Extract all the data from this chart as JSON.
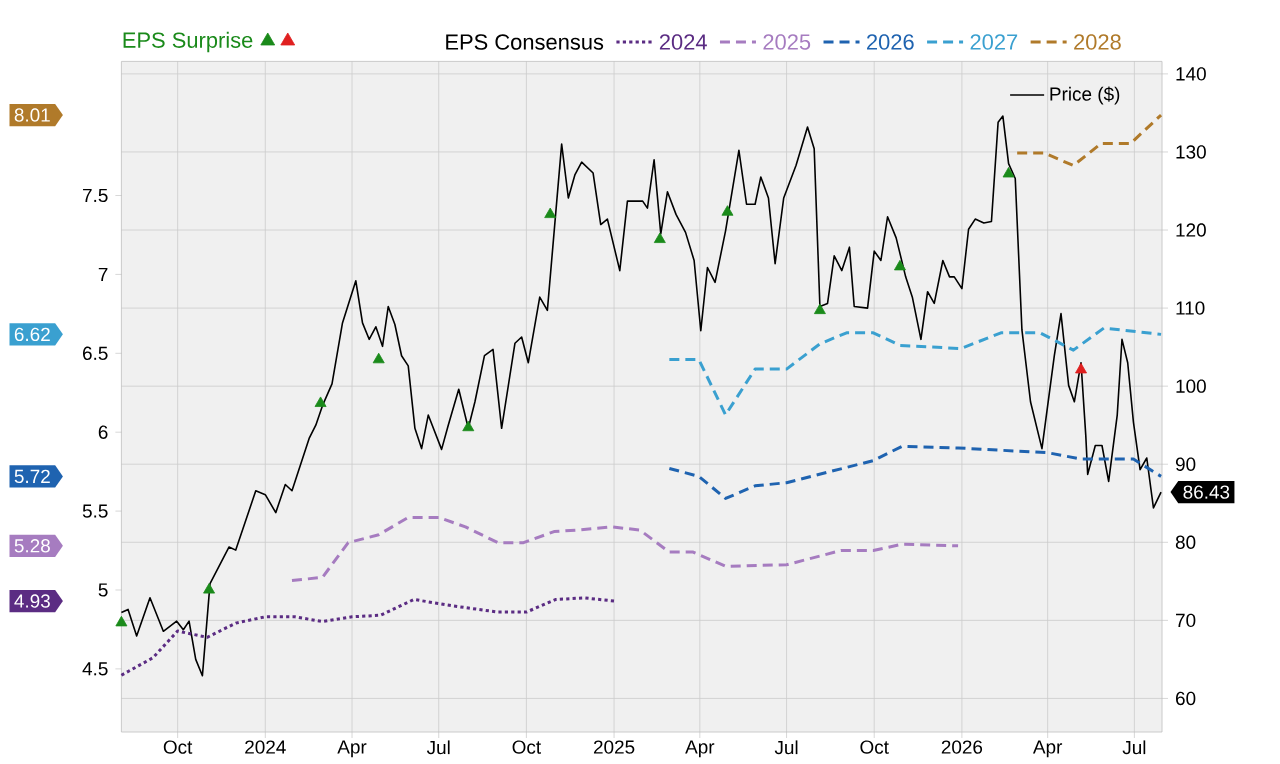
{
  "chart_data": {
    "type": "line",
    "legend": "top",
    "legend_title": "EPS Consensus",
    "grid": true,
    "annotations": [
      "4.93",
      "5.28",
      "5.72",
      "6.62",
      "8.01"
    ],
    "xlim": [
      "2023-08-03",
      "2026-07-30"
    ],
    "xticks": [
      {
        "value": "2023-10-01",
        "label": "Oct"
      },
      {
        "value": "2024-01-01",
        "label": "2024"
      },
      {
        "value": "2024-04-01",
        "label": "Apr"
      },
      {
        "value": "2024-07-01",
        "label": "Jul"
      },
      {
        "value": "2024-10-01",
        "label": "Oct"
      },
      {
        "value": "2025-01-01",
        "label": "2025"
      },
      {
        "value": "2025-04-01",
        "label": "Apr"
      },
      {
        "value": "2025-07-01",
        "label": "Jul"
      },
      {
        "value": "2025-10-01",
        "label": "Oct"
      },
      {
        "value": "2026-01-01",
        "label": "2026"
      },
      {
        "value": "2026-04-01",
        "label": "Apr"
      },
      {
        "value": "2026-07-01",
        "label": "Jul"
      }
    ],
    "ylim": [
      4.1,
      8.35
    ],
    "yticks": [
      4.5,
      5,
      5.5,
      6,
      6.5,
      7,
      7.5
    ],
    "y2lim": [
      55.7,
      141.6
    ],
    "y2ticks": [
      60,
      70,
      80,
      90,
      100,
      110,
      120,
      130,
      140
    ],
    "series": [
      {
        "name": "2024",
        "color": "#5b2c83",
        "line_style": "dotted",
        "x": [
          "2023-08-03",
          "2023-09-05",
          "2023-10-01",
          "2023-11-01",
          "2023-12-01",
          "2024-01-01",
          "2024-02-01",
          "2024-03-01",
          "2024-04-01",
          "2024-05-01",
          "2024-06-05",
          "2024-07-15",
          "2024-09-01",
          "2024-10-01",
          "2024-11-01",
          "2024-12-01",
          "2025-01-01"
        ],
        "values": [
          4.46,
          4.57,
          4.74,
          4.7,
          4.79,
          4.83,
          4.83,
          4.8,
          4.83,
          4.84,
          4.94,
          4.9,
          4.86,
          4.86,
          4.94,
          4.95,
          4.93
        ]
      },
      {
        "name": "2025",
        "color": "#a67cc0",
        "line_style": "dashed",
        "x": [
          "2024-01-29",
          "2024-03-01",
          "2024-03-28",
          "2024-04-29",
          "2024-05-30",
          "2024-07-01",
          "2024-07-29",
          "2024-09-01",
          "2024-09-28",
          "2024-10-30",
          "2024-11-24",
          "2024-12-29",
          "2025-01-28",
          "2025-02-28",
          "2025-03-25",
          "2025-04-28",
          "2025-07-01",
          "2025-08-27",
          "2025-09-30",
          "2025-10-30",
          "2025-12-28"
        ],
        "values": [
          5.06,
          5.08,
          5.3,
          5.35,
          5.46,
          5.46,
          5.4,
          5.3,
          5.3,
          5.37,
          5.38,
          5.4,
          5.38,
          5.24,
          5.24,
          5.15,
          5.16,
          5.25,
          5.25,
          5.29,
          5.28
        ]
      },
      {
        "name": "2026",
        "color": "#1f63b0",
        "line_style": "dashed",
        "x": [
          "2025-02-28",
          "2025-03-31",
          "2025-04-28",
          "2025-05-29",
          "2025-07-01",
          "2025-09-30",
          "2025-10-30",
          "2025-12-28",
          "2026-04-01",
          "2026-05-06",
          "2026-06-30",
          "2026-07-29"
        ],
        "values": [
          5.77,
          5.72,
          5.58,
          5.66,
          5.68,
          5.82,
          5.91,
          5.9,
          5.87,
          5.83,
          5.83,
          5.72
        ]
      },
      {
        "name": "2027",
        "color": "#3aa0d0",
        "line_style": "dashed",
        "x": [
          "2025-02-28",
          "2025-03-31",
          "2025-04-28",
          "2025-05-29",
          "2025-07-01",
          "2025-08-05",
          "2025-09-02",
          "2025-09-30",
          "2025-10-28",
          "2025-12-31",
          "2026-02-11",
          "2026-03-24",
          "2026-04-28",
          "2026-05-30",
          "2026-07-29"
        ],
        "values": [
          6.46,
          6.46,
          6.11,
          6.4,
          6.4,
          6.56,
          6.63,
          6.63,
          6.55,
          6.53,
          6.63,
          6.63,
          6.52,
          6.66,
          6.62
        ]
      },
      {
        "name": "2028",
        "color": "#b07a2a",
        "line_style": "dashed",
        "x": [
          "2026-02-28",
          "2026-03-28",
          "2026-04-28",
          "2026-05-27",
          "2026-06-27",
          "2026-07-29"
        ],
        "values": [
          7.77,
          7.77,
          7.69,
          7.83,
          7.83,
          8.01
        ]
      },
      {
        "name": "Price ($)",
        "color": "#000000",
        "axis": "y2",
        "line_style": "solid",
        "x": [
          "2023-08-03",
          "2023-08-10",
          "2023-08-19",
          "2023-09-02",
          "2023-09-16",
          "2023-09-30",
          "2023-10-07",
          "2023-10-13",
          "2023-10-20",
          "2023-10-27",
          "2023-11-04",
          "2023-11-24",
          "2023-12-01",
          "2023-12-22",
          "2024-01-01",
          "2024-01-12",
          "2024-01-22",
          "2024-01-29",
          "2024-02-16",
          "2024-02-23",
          "2024-03-01",
          "2024-03-11",
          "2024-03-22",
          "2024-04-05",
          "2024-04-12",
          "2024-04-19",
          "2024-04-26",
          "2024-05-03",
          "2024-05-09",
          "2024-05-16",
          "2024-05-23",
          "2024-05-30",
          "2024-06-06",
          "2024-06-13",
          "2024-06-20",
          "2024-07-04",
          "2024-07-11",
          "2024-07-22",
          "2024-08-01",
          "2024-08-08",
          "2024-08-18",
          "2024-08-27",
          "2024-09-05",
          "2024-09-19",
          "2024-09-26",
          "2024-10-03",
          "2024-10-15",
          "2024-10-23",
          "2024-11-07",
          "2024-11-14",
          "2024-11-21",
          "2024-11-28",
          "2024-12-10",
          "2024-12-18",
          "2024-12-25",
          "2025-01-07",
          "2025-01-15",
          "2025-01-31",
          "2025-02-05",
          "2025-02-12",
          "2025-02-19",
          "2025-02-26",
          "2025-03-07",
          "2025-03-17",
          "2025-03-26",
          "2025-04-02",
          "2025-04-09",
          "2025-04-17",
          "2025-04-28",
          "2025-05-12",
          "2025-05-20",
          "2025-05-29",
          "2025-06-04",
          "2025-06-12",
          "2025-06-19",
          "2025-06-28",
          "2025-07-11",
          "2025-07-23",
          "2025-07-30",
          "2025-08-05",
          "2025-08-13",
          "2025-08-20",
          "2025-08-28",
          "2025-09-05",
          "2025-09-10",
          "2025-09-24",
          "2025-10-01",
          "2025-10-08",
          "2025-10-15",
          "2025-10-24",
          "2025-11-03",
          "2025-11-10",
          "2025-11-19",
          "2025-11-26",
          "2025-12-03",
          "2025-12-12",
          "2025-12-19",
          "2025-12-24",
          "2026-01-01",
          "2026-01-08",
          "2026-01-15",
          "2026-01-24",
          "2026-02-01",
          "2026-02-08",
          "2026-02-13",
          "2026-02-19",
          "2026-02-26",
          "2026-03-05",
          "2026-03-14",
          "2026-03-26",
          "2026-04-08",
          "2026-04-15",
          "2026-04-23",
          "2026-04-29",
          "2026-05-06",
          "2026-05-11",
          "2026-05-13",
          "2026-05-21",
          "2026-05-28",
          "2026-06-04",
          "2026-06-13",
          "2026-06-18",
          "2026-06-24",
          "2026-06-30",
          "2026-07-07",
          "2026-07-14",
          "2026-07-21",
          "2026-07-29"
        ],
        "values": [
          71.0,
          71.4,
          68.0,
          72.9,
          68.6,
          69.9,
          68.8,
          69.9,
          65.0,
          62.9,
          74.7,
          79.4,
          79.0,
          86.6,
          86.1,
          83.8,
          87.4,
          86.6,
          93.3,
          95.0,
          97.5,
          100.3,
          108.1,
          113.5,
          108.1,
          106.0,
          107.6,
          105.1,
          110.2,
          107.9,
          103.9,
          102.6,
          94.6,
          92.0,
          96.3,
          91.9,
          95.0,
          99.6,
          94.6,
          98.0,
          103.9,
          104.7,
          94.6,
          105.5,
          106.3,
          103.0,
          111.4,
          109.7,
          131.0,
          124.1,
          127.1,
          128.7,
          127.3,
          120.7,
          121.4,
          114.8,
          123.7,
          123.7,
          122.8,
          129.0,
          119.5,
          124.9,
          122.0,
          119.7,
          116.1,
          107.1,
          115.2,
          113.3,
          119.9,
          130.2,
          123.3,
          123.3,
          126.8,
          124.1,
          115.7,
          124.1,
          128.3,
          133.2,
          130.4,
          110.2,
          110.6,
          116.7,
          114.8,
          117.8,
          110.2,
          110.0,
          117.3,
          116.1,
          121.7,
          119.0,
          114.0,
          111.4,
          106.0,
          112.1,
          110.6,
          116.1,
          114.0,
          114.0,
          112.5,
          120.1,
          121.4,
          120.9,
          121.1,
          133.8,
          134.6,
          128.5,
          126.6,
          107.2,
          98.0,
          92.0,
          103.9,
          109.3,
          100.1,
          98.0,
          103.0,
          93.7,
          88.7,
          92.4,
          92.4,
          87.8,
          96.3,
          106.0,
          103.0,
          95.4,
          89.3,
          90.8,
          84.4,
          86.43
        ],
        "value_labels": [
          null,
          null,
          null,
          null,
          null,
          null,
          null,
          null,
          null,
          null,
          null,
          null,
          null,
          null,
          null,
          null,
          null,
          null,
          null,
          null,
          null,
          null,
          null,
          null,
          null,
          null,
          null,
          null,
          null,
          null,
          null,
          null,
          null,
          null,
          null,
          null,
          null,
          null,
          null,
          null,
          null,
          null,
          null,
          null,
          null,
          null,
          null,
          null,
          null,
          null,
          null,
          null,
          null,
          null,
          null,
          null,
          null,
          null,
          null,
          null,
          null,
          null,
          null,
          null,
          null,
          null,
          null,
          null,
          null,
          null,
          null,
          null,
          null,
          null,
          null,
          null,
          null,
          null,
          null,
          null,
          null,
          null,
          null,
          null,
          null,
          null,
          null,
          null,
          null,
          null,
          null,
          null,
          null,
          null,
          null,
          null,
          null,
          null,
          null,
          null,
          null,
          null,
          null,
          null,
          null,
          null,
          null,
          null,
          null,
          null,
          null,
          null,
          null,
          null,
          null,
          null,
          null,
          null,
          null,
          null,
          null,
          null,
          null,
          null,
          null,
          null,
          null,
          "86.43"
        ]
      },
      {
        "name": "EPS Surprise",
        "type": "scatter",
        "marker": "triangle",
        "color": "#1a8a1a",
        "axis": "y2",
        "x": [
          "2023-08-03",
          "2023-11-03",
          "2024-02-28",
          "2024-04-29",
          "2024-08-01",
          "2024-10-26",
          "2025-02-18",
          "2025-04-30",
          "2025-08-05",
          "2025-10-28",
          "2026-02-19"
        ],
        "values": [
          69.7,
          73.9,
          97.8,
          103.4,
          94.7,
          122.0,
          118.8,
          122.3,
          109.7,
          115.3,
          127.2
        ]
      },
      {
        "type": "scatter",
        "marker": "triangle",
        "color": "#e02020",
        "axis": "y2",
        "x": [
          "2026-05-06"
        ],
        "values": [
          102.1
        ]
      }
    ]
  }
}
